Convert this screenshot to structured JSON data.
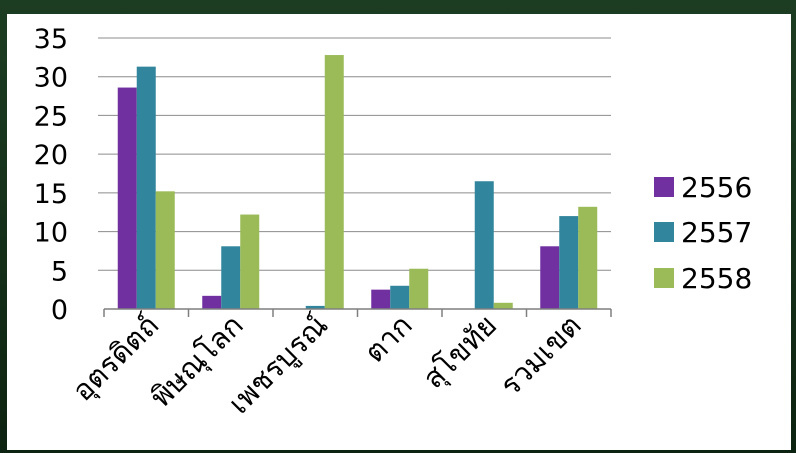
{
  "chart_data": {
    "type": "bar",
    "categories": [
      "อุตรดิตถ์",
      "พิษณุโลก",
      "เพชรบูรณ์",
      "ตาก",
      "สุโขทัย",
      "รวมเขต"
    ],
    "series": [
      {
        "name": "2556",
        "color": "#7030a0",
        "values": [
          28.6,
          1.7,
          0,
          2.5,
          0,
          8.1
        ]
      },
      {
        "name": "2557",
        "color": "#31859c",
        "values": [
          31.3,
          8.1,
          0.4,
          3.0,
          16.5,
          12.0
        ]
      },
      {
        "name": "2558",
        "color": "#9bbb59",
        "values": [
          15.2,
          12.2,
          32.8,
          5.2,
          0.8,
          13.2
        ]
      }
    ],
    "ylim": [
      0,
      35
    ],
    "yticks": [
      "0",
      "5",
      "10",
      "15",
      "20",
      "25",
      "30",
      "35"
    ],
    "grid": true,
    "legend_position": "right",
    "title": "",
    "xlabel": "",
    "ylabel": ""
  }
}
